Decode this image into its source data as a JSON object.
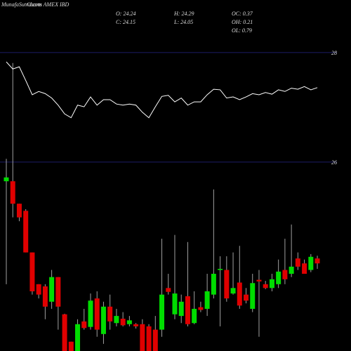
{
  "chart_data": {
    "type": "candlestick",
    "watermark": "MunafaSutra.com",
    "title": "Charts AMEX IBD",
    "stats": [
      "O: 24.24",
      "C: 24.15",
      "H: 24.29",
      "L: 24.05",
      "OC: 0.37",
      "OH: 0.21",
      "OL: 0.79"
    ],
    "ylim": [
      22.55,
      28.96
    ],
    "yticks": [
      28,
      26
    ],
    "grid": true,
    "up_color": "#00dd00",
    "down_color": "#e00000",
    "wick_color": "#a0a0a0",
    "grid_color": "#1c1c66",
    "open": [
      25.65,
      25.65,
      25.24,
      25.11,
      24.35,
      23.77,
      23.73,
      23.45,
      23.9,
      23.22,
      22.72,
      22.55,
      23.09,
      22.99,
      23.51,
      22.86,
      23.36,
      23.06,
      23.14,
      23.04,
      23.04,
      23.04,
      23.0,
      22.94,
      22.94,
      23.7,
      23.22,
      23.19,
      23.55,
      23.06,
      23.35,
      23.32,
      23.58,
      24.03,
      24.03,
      23.6,
      23.8,
      23.58,
      23.32,
      23.85,
      23.77,
      23.7,
      23.77,
      24.03,
      23.96,
      24.24,
      24.15,
      24.03,
      24.24
    ],
    "high": [
      26.06,
      27.81,
      25.24,
      25.14,
      24.35,
      23.77,
      23.77,
      24.03,
      23.9,
      23.23,
      22.72,
      23.13,
      23.32,
      23.6,
      23.64,
      23.45,
      23.58,
      23.32,
      23.26,
      23.19,
      23.06,
      23.13,
      23.04,
      23.19,
      24.6,
      23.96,
      24.67,
      23.58,
      24.54,
      23.64,
      23.45,
      23.96,
      25.5,
      24.28,
      24.28,
      24.35,
      24.47,
      23.7,
      23.96,
      24.03,
      23.83,
      23.96,
      24.22,
      24.6,
      24.86,
      24.35,
      24.22,
      24.32,
      24.29
    ],
    "low": [
      23.77,
      24.99,
      24.92,
      24.35,
      23.58,
      23.51,
      23.13,
      23.32,
      22.94,
      22.55,
      22.55,
      22.55,
      22.94,
      22.94,
      22.81,
      22.68,
      22.94,
      23.0,
      23.0,
      23.0,
      22.96,
      22.55,
      22.55,
      22.55,
      22.81,
      23.58,
      23.13,
      23.06,
      23.0,
      23.04,
      23.26,
      23.19,
      23.51,
      23.0,
      23.45,
      23.58,
      23.32,
      23.42,
      23.26,
      22.81,
      23.68,
      23.64,
      23.7,
      23.77,
      23.9,
      24.03,
      23.96,
      23.99,
      24.05
    ],
    "close": [
      25.72,
      25.24,
      24.99,
      24.35,
      23.64,
      23.58,
      23.36,
      23.9,
      23.36,
      22.55,
      22.55,
      23.04,
      22.97,
      23.47,
      22.94,
      23.36,
      23.09,
      23.19,
      23.02,
      23.11,
      23.0,
      22.55,
      22.55,
      22.55,
      23.58,
      23.63,
      23.6,
      23.45,
      23.04,
      23.32,
      23.3,
      23.64,
      23.96,
      24.05,
      23.51,
      23.7,
      23.38,
      23.47,
      23.79,
      23.82,
      23.7,
      23.86,
      24.0,
      23.86,
      24.09,
      24.09,
      23.96,
      24.27,
      24.15
    ],
    "line": {
      "color": "#ffffff",
      "values": [
        27.83,
        27.7,
        27.74,
        27.49,
        27.23,
        27.29,
        27.25,
        27.17,
        27.04,
        26.88,
        26.81,
        27.04,
        27.01,
        27.19,
        27.04,
        27.14,
        27.14,
        27.06,
        27.04,
        27.06,
        27.04,
        26.91,
        26.81,
        27.01,
        27.2,
        27.22,
        27.1,
        27.17,
        27.04,
        27.1,
        27.1,
        27.23,
        27.33,
        27.32,
        27.17,
        27.19,
        27.14,
        27.19,
        27.25,
        27.23,
        27.27,
        27.24,
        27.32,
        27.29,
        27.35,
        27.33,
        27.38,
        27.32,
        27.36
      ]
    }
  }
}
